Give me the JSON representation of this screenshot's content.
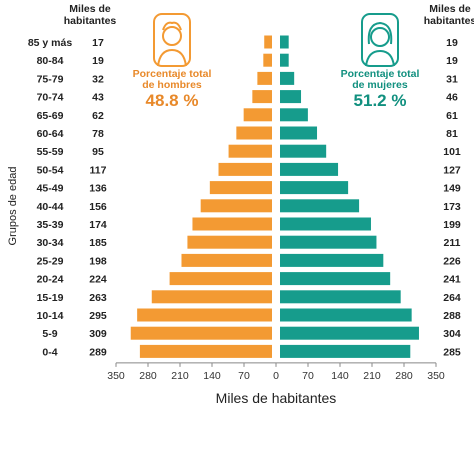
{
  "colors": {
    "men": "#F39A33",
    "women": "#169C8C",
    "men_text": "#E8892A",
    "women_text": "#11907F"
  },
  "left_header": "Miles de\nhabitantes",
  "right_header": "Miles de\nhabitantes",
  "men_panel": {
    "icon": "man-silhouette-icon",
    "label": "Porcentaje total\nde hombres",
    "value": "48.8 %"
  },
  "women_panel": {
    "icon": "woman-silhouette-icon",
    "label": "Porcentaje total\nde mujeres",
    "value": "51.2 %"
  },
  "chart_data": {
    "type": "bar",
    "orientation": "horizontal-population-pyramid",
    "xlabel": "Miles de habitantes",
    "ylabel": "Grupos de edad",
    "xlim": [
      -350,
      350
    ],
    "x_ticks": [
      "350",
      "280",
      "210",
      "140",
      "70",
      "0",
      "70",
      "140",
      "210",
      "280",
      "350"
    ],
    "categories": [
      "85 y más",
      "80-84",
      "75-79",
      "70-74",
      "65-69",
      "60-64",
      "55-59",
      "50-54",
      "45-49",
      "40-44",
      "35-39",
      "30-34",
      "25-29",
      "20-24",
      "15-19",
      "10-14",
      "5-9",
      "0-4"
    ],
    "series": [
      {
        "values": [
          17,
          19,
          32,
          43,
          62,
          78,
          95,
          117,
          136,
          156,
          174,
          185,
          198,
          224,
          263,
          295,
          309,
          289
        ]
      },
      {
        "values": [
          19,
          19,
          31,
          46,
          61,
          81,
          101,
          127,
          149,
          173,
          199,
          211,
          226,
          241,
          264,
          288,
          304,
          285
        ]
      }
    ],
    "grid": false
  }
}
